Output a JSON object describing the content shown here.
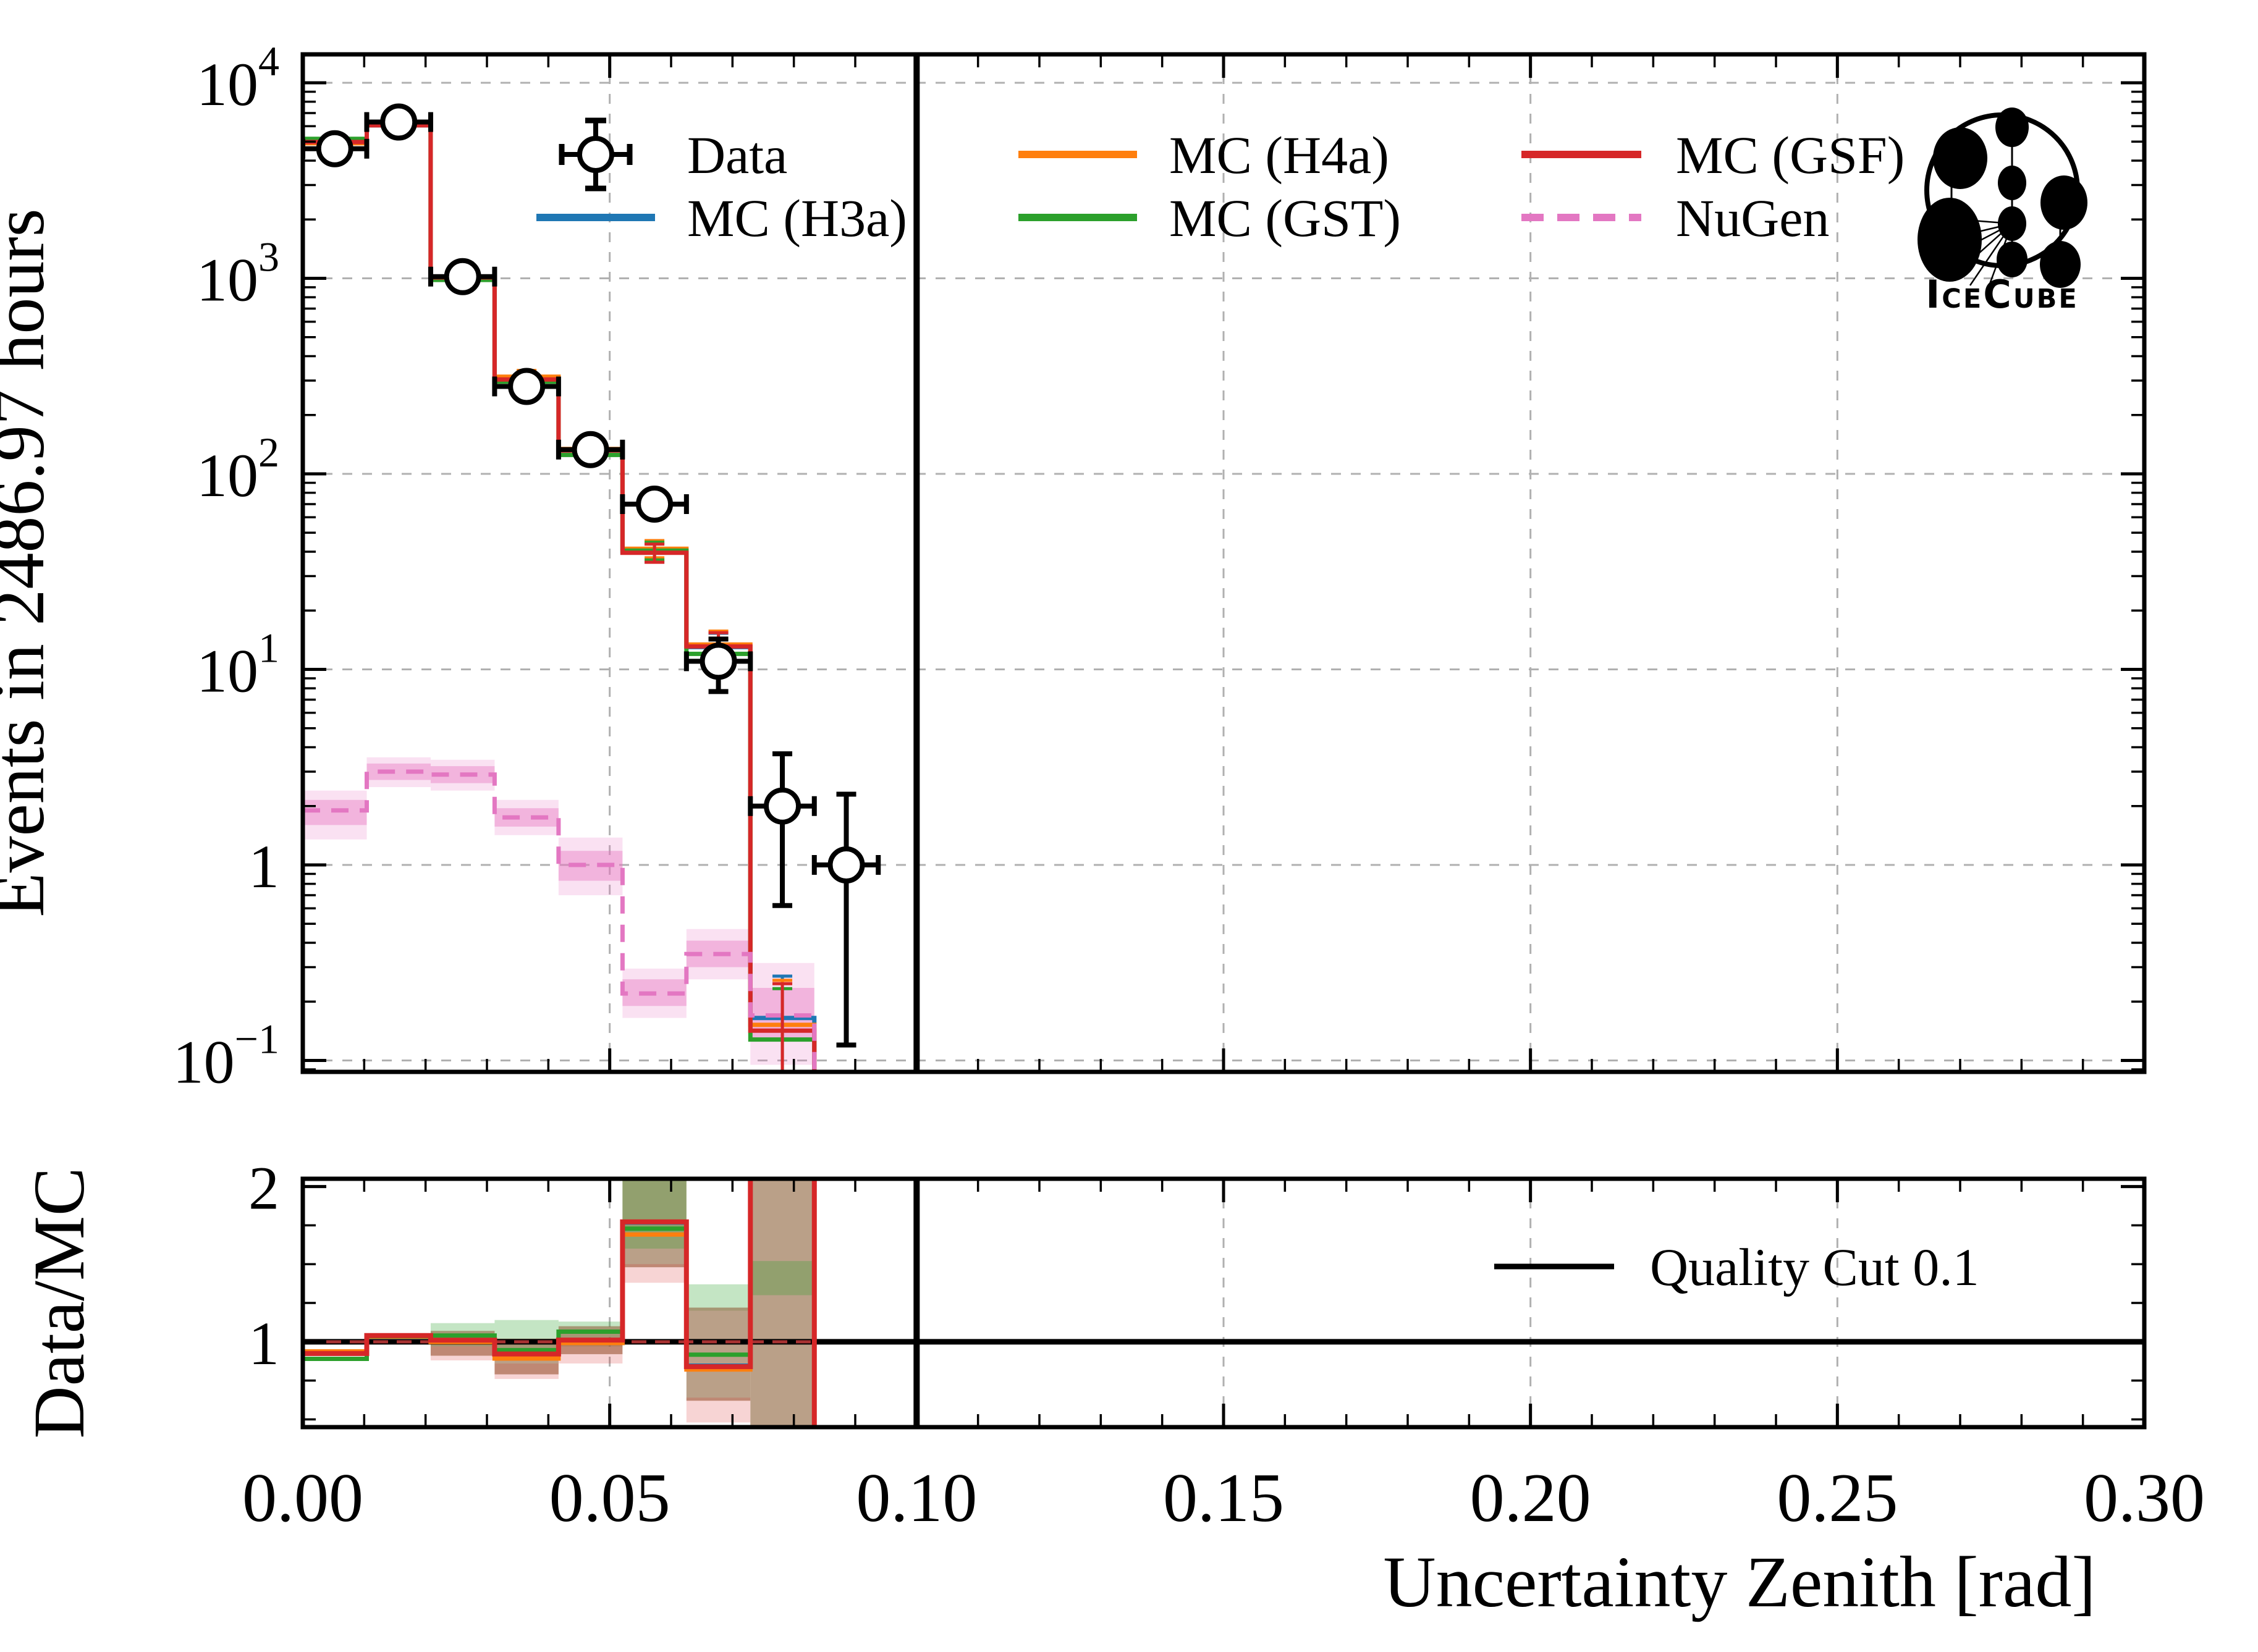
{
  "figure": {
    "ylabel_main": "Events in 2486.97 hours",
    "ylabel_ratio": "Data/MC",
    "xlabel": "Uncertainty Zenith [rad]",
    "watermark": "IceCube"
  },
  "colors": {
    "data": "#000000",
    "h3a": "#1f77b4",
    "h4a": "#ff7f0e",
    "gst": "#2ca02c",
    "gsf": "#d62728",
    "nugen": "#e377c2",
    "grid": "#b0b0b0",
    "unity_dashed": "#a83232",
    "band_green": "rgba(44,160,44,0.28)",
    "band_tan": "rgba(150,111,75,0.66)",
    "band_pink": "rgba(214,39,40,0.20)",
    "nugen_band_outer": "rgba(231,119,194,0.22)",
    "nugen_band_inner": "rgba(231,119,194,0.42)"
  },
  "legend": {
    "main": [
      {
        "label": "Data",
        "type": "marker",
        "color": "#000000"
      },
      {
        "label": "MC (H3a)",
        "type": "line",
        "color": "#1f77b4"
      },
      {
        "label": "MC (H4a)",
        "type": "line",
        "color": "#ff7f0e"
      },
      {
        "label": "MC (GST)",
        "type": "line",
        "color": "#2ca02c"
      },
      {
        "label": "MC (GSF)",
        "type": "line",
        "color": "#d62728"
      },
      {
        "label": "NuGen",
        "type": "dashed",
        "color": "#e377c2"
      }
    ],
    "ratio": [
      {
        "label": "Quality Cut 0.1",
        "type": "line",
        "color": "#000000"
      }
    ]
  },
  "chart_data": {
    "type": "histogram+ratio",
    "x": {
      "label": "Uncertainty Zenith [rad]",
      "lim": [
        0,
        0.3
      ],
      "major_ticks": [
        0,
        0.05,
        0.1,
        0.15,
        0.2,
        0.25,
        0.3
      ],
      "tick_labels": [
        "0.00",
        "0.05",
        "0.10",
        "0.15",
        "0.20",
        "0.25",
        "0.30"
      ],
      "minor_step": 0.01,
      "gridlines": [
        0.05,
        0.1,
        0.15,
        0.2,
        0.25
      ]
    },
    "main_axis": {
      "ylabel": "Events in 2486.97 hours",
      "yscale": "log",
      "ylim": [
        0.088,
        14000
      ],
      "yticks": [
        {
          "v": 10000,
          "label": "10^4"
        },
        {
          "v": 1000,
          "label": "10^3"
        },
        {
          "v": 100,
          "label": "10^2"
        },
        {
          "v": 10,
          "label": "10^1"
        },
        {
          "v": 1,
          "label": "1"
        },
        {
          "v": 0.1,
          "label": "10^-1"
        }
      ],
      "grid": true
    },
    "ratio_axis": {
      "ylabel": "Data/MC",
      "ylim": [
        0.45,
        2.05
      ],
      "yticks": [
        {
          "v": 1,
          "label": "1"
        },
        {
          "v": 2,
          "label": "2"
        }
      ],
      "minor_ticks": [
        0.5,
        0.75,
        1.25,
        1.5,
        1.75
      ],
      "reference": 1
    },
    "bin_edges": [
      0,
      0.010417,
      0.020833,
      0.03125,
      0.041667,
      0.052083,
      0.0625,
      0.072917,
      0.083333,
      0.09375
    ],
    "series": {
      "data": {
        "label": "Data",
        "y": [
          4600,
          6300,
          1020,
          280,
          133,
          70,
          11,
          2,
          1
        ],
        "err_lo": [
          68,
          79,
          32,
          17,
          11.5,
          8.4,
          3.3,
          1.38,
          0.88
        ],
        "err_hi": [
          68,
          79,
          32,
          17,
          11.5,
          8.4,
          3.3,
          1.7,
          1.3
        ]
      },
      "mc": [
        {
          "key": "h3a",
          "label": "MC (H3a)",
          "color": "#1f77b4",
          "y": [
            4984,
            6058,
            1012,
            304,
            131.9,
            39.6,
            13.0,
            0.165
          ]
        },
        {
          "key": "h4a",
          "label": "MC (H4a)",
          "color": "#ff7f0e",
          "y": [
            4904,
            6099,
            1022,
            314,
            134.1,
            41.4,
            13.4,
            0.152
          ]
        },
        {
          "key": "gst",
          "label": "MC (GST)",
          "color": "#2ca02c",
          "y": [
            5169,
            6081,
            981,
            296,
            124.9,
            40.5,
            12.0,
            0.128
          ]
        },
        {
          "key": "gsf",
          "label": "MC (GSF)",
          "color": "#d62728",
          "y": [
            4978,
            6058,
            1010,
            304,
            131.6,
            39.5,
            13.1,
            0.142
          ]
        }
      ],
      "mc_err": [
        0,
        0,
        0,
        24,
        11,
        4.2,
        2.3,
        0.105
      ],
      "nugen": {
        "label": "NuGen",
        "color": "#e377c2",
        "y": [
          1.9,
          3.0,
          2.9,
          1.75,
          1.0,
          0.22,
          0.35,
          0.17
        ],
        "outer_lo": [
          1.35,
          2.5,
          2.4,
          1.42,
          0.7,
          0.165,
          0.26,
          0.095
        ],
        "outer_hi": [
          2.4,
          3.55,
          3.45,
          2.15,
          1.38,
          0.295,
          0.47,
          0.315
        ],
        "inner_lo": [
          1.6,
          2.72,
          2.62,
          1.57,
          0.83,
          0.19,
          0.3,
          0.125
        ],
        "inner_hi": [
          2.15,
          3.3,
          3.2,
          1.95,
          1.18,
          0.26,
          0.41,
          0.235
        ]
      }
    },
    "ratio_bands": [
      [
        2,
        "green",
        0.97,
        1.12
      ],
      [
        2,
        "tan",
        0.91,
        1.07
      ],
      [
        2,
        "pink",
        0.88,
        0.97
      ],
      [
        3,
        "green",
        0.88,
        1.14
      ],
      [
        3,
        "tan",
        0.79,
        1.02
      ],
      [
        3,
        "pink",
        0.76,
        0.86
      ],
      [
        4,
        "green",
        0.97,
        1.13
      ],
      [
        4,
        "tan",
        0.92,
        1.1
      ],
      [
        4,
        "pink",
        0.86,
        0.98
      ],
      [
        5,
        "tan",
        1.48,
        2.05
      ],
      [
        5,
        "green",
        1.6,
        2.05
      ],
      [
        5,
        "pink",
        1.38,
        1.5
      ],
      [
        6,
        "green",
        1.2,
        1.37
      ],
      [
        6,
        "tan",
        0.62,
        1.22
      ],
      [
        6,
        "pink",
        0.48,
        0.64
      ],
      [
        7,
        "tan",
        0.45,
        2.05
      ],
      [
        7,
        "green",
        1.3,
        1.52
      ]
    ],
    "quality_cut": {
      "x": 0.1,
      "label": "Quality Cut 0.1"
    }
  }
}
